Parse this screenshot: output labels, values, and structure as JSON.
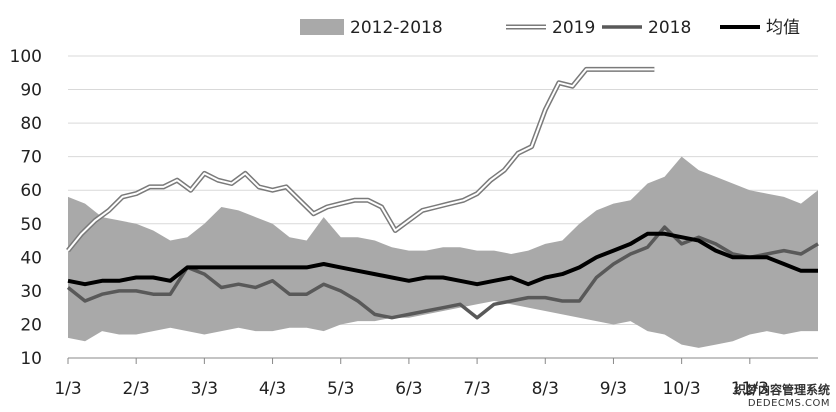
{
  "chart_data": {
    "type": "line",
    "title": "",
    "xlabel": "",
    "ylabel": "",
    "ylim": [
      10,
      100
    ],
    "yticks": [
      10,
      20,
      30,
      40,
      50,
      60,
      70,
      80,
      90,
      100
    ],
    "xlim": [
      1,
      12
    ],
    "xticks": [
      {
        "x": 1,
        "label": "1/3"
      },
      {
        "x": 2,
        "label": "2/3"
      },
      {
        "x": 3,
        "label": "3/3"
      },
      {
        "x": 4,
        "label": "4/3"
      },
      {
        "x": 5,
        "label": "5/3"
      },
      {
        "x": 6,
        "label": "6/3"
      },
      {
        "x": 7,
        "label": "7/3"
      },
      {
        "x": 8,
        "label": "8/3"
      },
      {
        "x": 9,
        "label": "9/3"
      },
      {
        "x": 10,
        "label": "10/3"
      },
      {
        "x": 11,
        "label": "11/3"
      }
    ],
    "legend_position": "top",
    "grid": "horizontal",
    "band": {
      "name": "2012-2018",
      "color": "#a9a9a9",
      "x": [
        1.0,
        1.25,
        1.5,
        1.75,
        2.0,
        2.25,
        2.5,
        2.75,
        3.0,
        3.25,
        3.5,
        3.75,
        4.0,
        4.25,
        4.5,
        4.75,
        5.0,
        5.25,
        5.5,
        5.75,
        6.0,
        6.25,
        6.5,
        6.75,
        7.0,
        7.25,
        7.5,
        7.75,
        8.0,
        8.25,
        8.5,
        8.75,
        9.0,
        9.25,
        9.5,
        9.75,
        10.0,
        10.25,
        10.5,
        10.75,
        11.0,
        11.25,
        11.5,
        11.75,
        12.0
      ],
      "upper": [
        58,
        56,
        52,
        51,
        50,
        48,
        45,
        46,
        50,
        55,
        54,
        52,
        50,
        46,
        45,
        52,
        46,
        46,
        45,
        43,
        42,
        42,
        43,
        43,
        42,
        42,
        41,
        42,
        44,
        45,
        50,
        54,
        56,
        57,
        62,
        64,
        70,
        66,
        64,
        62,
        60,
        59,
        58,
        56,
        60
      ],
      "lower": [
        16,
        15,
        18,
        17,
        17,
        18,
        19,
        18,
        17,
        18,
        19,
        18,
        18,
        19,
        19,
        18,
        20,
        21,
        21,
        22,
        22,
        23,
        24,
        25,
        26,
        27,
        26,
        25,
        24,
        23,
        22,
        21,
        20,
        21,
        18,
        17,
        14,
        13,
        14,
        15,
        17,
        18,
        17,
        18,
        18
      ]
    },
    "series": [
      {
        "name": "2019",
        "style": "double",
        "color": "#888888",
        "x": [
          1.0,
          1.2,
          1.4,
          1.6,
          1.8,
          2.0,
          2.2,
          2.4,
          2.6,
          2.8,
          3.0,
          3.2,
          3.4,
          3.6,
          3.8,
          4.0,
          4.2,
          4.4,
          4.6,
          4.8,
          5.0,
          5.2,
          5.4,
          5.6,
          5.8,
          6.0,
          6.2,
          6.4,
          6.6,
          6.8,
          7.0,
          7.2,
          7.4,
          7.6,
          7.8,
          8.0,
          8.2,
          8.4,
          8.6,
          8.8,
          9.0,
          9.2,
          9.4,
          9.6
        ],
        "values": [
          42,
          47,
          51,
          54,
          58,
          59,
          61,
          61,
          63,
          60,
          65,
          63,
          62,
          65,
          61,
          60,
          61,
          57,
          53,
          55,
          56,
          57,
          57,
          55,
          48,
          51,
          54,
          55,
          56,
          57,
          59,
          63,
          66,
          71,
          73,
          84,
          92,
          91,
          96,
          96,
          96,
          96,
          96,
          96
        ]
      },
      {
        "name": "2018",
        "style": "solid",
        "color": "#595959",
        "x": [
          1.0,
          1.25,
          1.5,
          1.75,
          2.0,
          2.25,
          2.5,
          2.75,
          3.0,
          3.25,
          3.5,
          3.75,
          4.0,
          4.25,
          4.5,
          4.75,
          5.0,
          5.25,
          5.5,
          5.75,
          6.0,
          6.25,
          6.5,
          6.75,
          7.0,
          7.25,
          7.5,
          7.75,
          8.0,
          8.25,
          8.5,
          8.75,
          9.0,
          9.25,
          9.5,
          9.75,
          10.0,
          10.25,
          10.5,
          10.75,
          11.0,
          11.25,
          11.5,
          11.75,
          12.0
        ],
        "values": [
          31,
          27,
          29,
          30,
          30,
          29,
          29,
          37,
          35,
          31,
          32,
          31,
          33,
          29,
          29,
          32,
          30,
          27,
          23,
          22,
          23,
          24,
          25,
          26,
          22,
          26,
          27,
          28,
          28,
          27,
          27,
          34,
          38,
          41,
          43,
          49,
          44,
          46,
          44,
          41,
          40,
          41,
          42,
          41,
          44
        ]
      },
      {
        "name": "均值",
        "style": "bold",
        "color": "#000000",
        "x": [
          1.0,
          1.25,
          1.5,
          1.75,
          2.0,
          2.25,
          2.5,
          2.75,
          3.0,
          3.25,
          3.5,
          3.75,
          4.0,
          4.25,
          4.5,
          4.75,
          5.0,
          5.25,
          5.5,
          5.75,
          6.0,
          6.25,
          6.5,
          6.75,
          7.0,
          7.25,
          7.5,
          7.75,
          8.0,
          8.25,
          8.5,
          8.75,
          9.0,
          9.25,
          9.5,
          9.75,
          10.0,
          10.25,
          10.5,
          10.75,
          11.0,
          11.25,
          11.5,
          11.75,
          12.0
        ],
        "values": [
          33,
          32,
          33,
          33,
          34,
          34,
          33,
          37,
          37,
          37,
          37,
          37,
          37,
          37,
          37,
          38,
          37,
          36,
          35,
          34,
          33,
          34,
          34,
          33,
          32,
          33,
          34,
          32,
          34,
          35,
          37,
          40,
          42,
          44,
          47,
          47,
          46,
          45,
          42,
          40,
          40,
          40,
          38,
          36,
          36
        ]
      }
    ]
  },
  "watermark": {
    "line1": "织梦内容管理系统",
    "line2": "DEDECMS.COM"
  }
}
